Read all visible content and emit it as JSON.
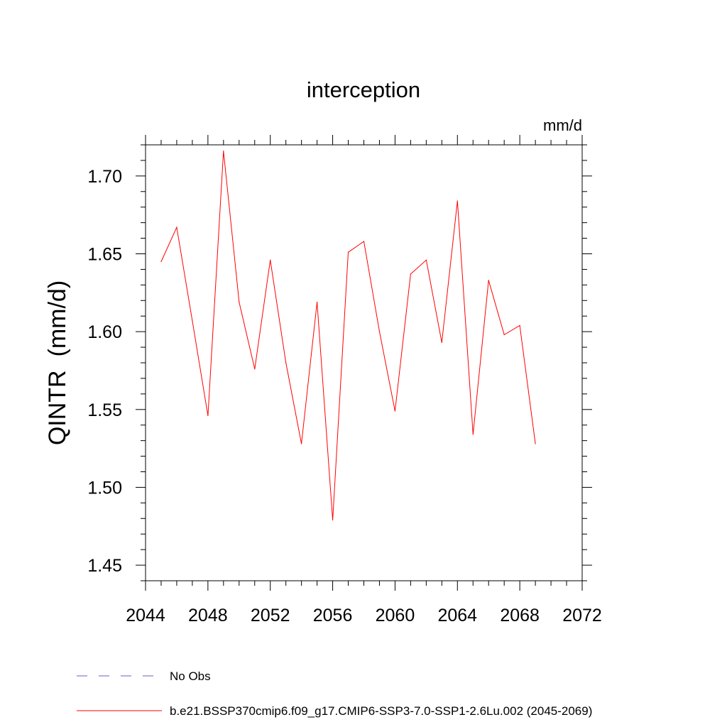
{
  "chart_data": {
    "type": "line",
    "title": "interception",
    "units_label": "mm/d",
    "ylabel": "QINTR  (mm/d)",
    "xlabel": "",
    "xlim": [
      2044,
      2072
    ],
    "ylim": [
      1.44,
      1.72
    ],
    "xticks": [
      "2044",
      "2048",
      "2052",
      "2056",
      "2060",
      "2064",
      "2068",
      "2072"
    ],
    "yticks": [
      "1.45",
      "1.50",
      "1.55",
      "1.60",
      "1.65",
      "1.70"
    ],
    "grid": false,
    "legend_position": "bottom",
    "x": [
      2045,
      2046,
      2047,
      2048,
      2049,
      2050,
      2051,
      2052,
      2053,
      2054,
      2055,
      2056,
      2057,
      2058,
      2059,
      2060,
      2061,
      2062,
      2063,
      2064,
      2065,
      2066,
      2067,
      2068,
      2069
    ],
    "series": [
      {
        "name": "b.e21.BSSP370cmip6.f09_g17.CMIP6-SSP3-7.0-SSP1-2.6Lu.002 (2045-2069)",
        "color": "#ff0000",
        "style": "solid",
        "values": [
          1.645,
          1.667,
          1.607,
          1.546,
          1.716,
          1.619,
          1.576,
          1.646,
          1.58,
          1.528,
          1.619,
          1.479,
          1.651,
          1.658,
          1.6,
          1.549,
          1.637,
          1.646,
          1.593,
          1.684,
          1.534,
          1.633,
          1.598,
          1.604,
          1.528
        ]
      }
    ],
    "legend": [
      {
        "label": "No Obs",
        "color": "#6a5acd",
        "style": "dashed"
      },
      {
        "label": "b.e21.BSSP370cmip6.f09_g17.CMIP6-SSP3-7.0-SSP1-2.6Lu.002 (2045-2069)",
        "color": "#ff0000",
        "style": "solid"
      }
    ]
  }
}
